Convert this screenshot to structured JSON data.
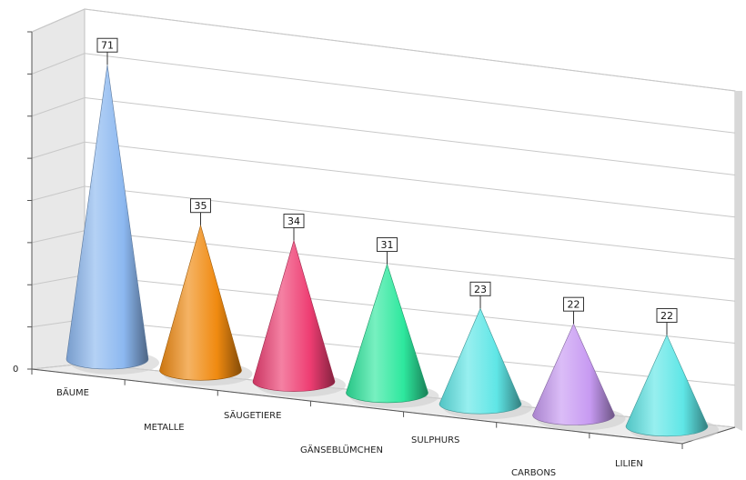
{
  "chart_data": {
    "type": "bar",
    "style": "3d-cone",
    "title": "",
    "xlabel": "",
    "ylabel": "",
    "ylim": [
      0,
      75
    ],
    "y_tick_labels": [
      "0"
    ],
    "grid": true,
    "categories": [
      "BÄUME",
      "METALLE",
      "SÄUGETIERE",
      "GÄNSEBLÜMCHEN",
      "SULPHURS",
      "CARBONS",
      "LILIEN"
    ],
    "values": [
      71,
      35,
      34,
      31,
      23,
      22,
      22
    ],
    "colors": [
      "#8cb8f0",
      "#f08a10",
      "#ee3d72",
      "#2ee89e",
      "#5fe6e6",
      "#c79af2",
      "#5fe6e6"
    ]
  }
}
